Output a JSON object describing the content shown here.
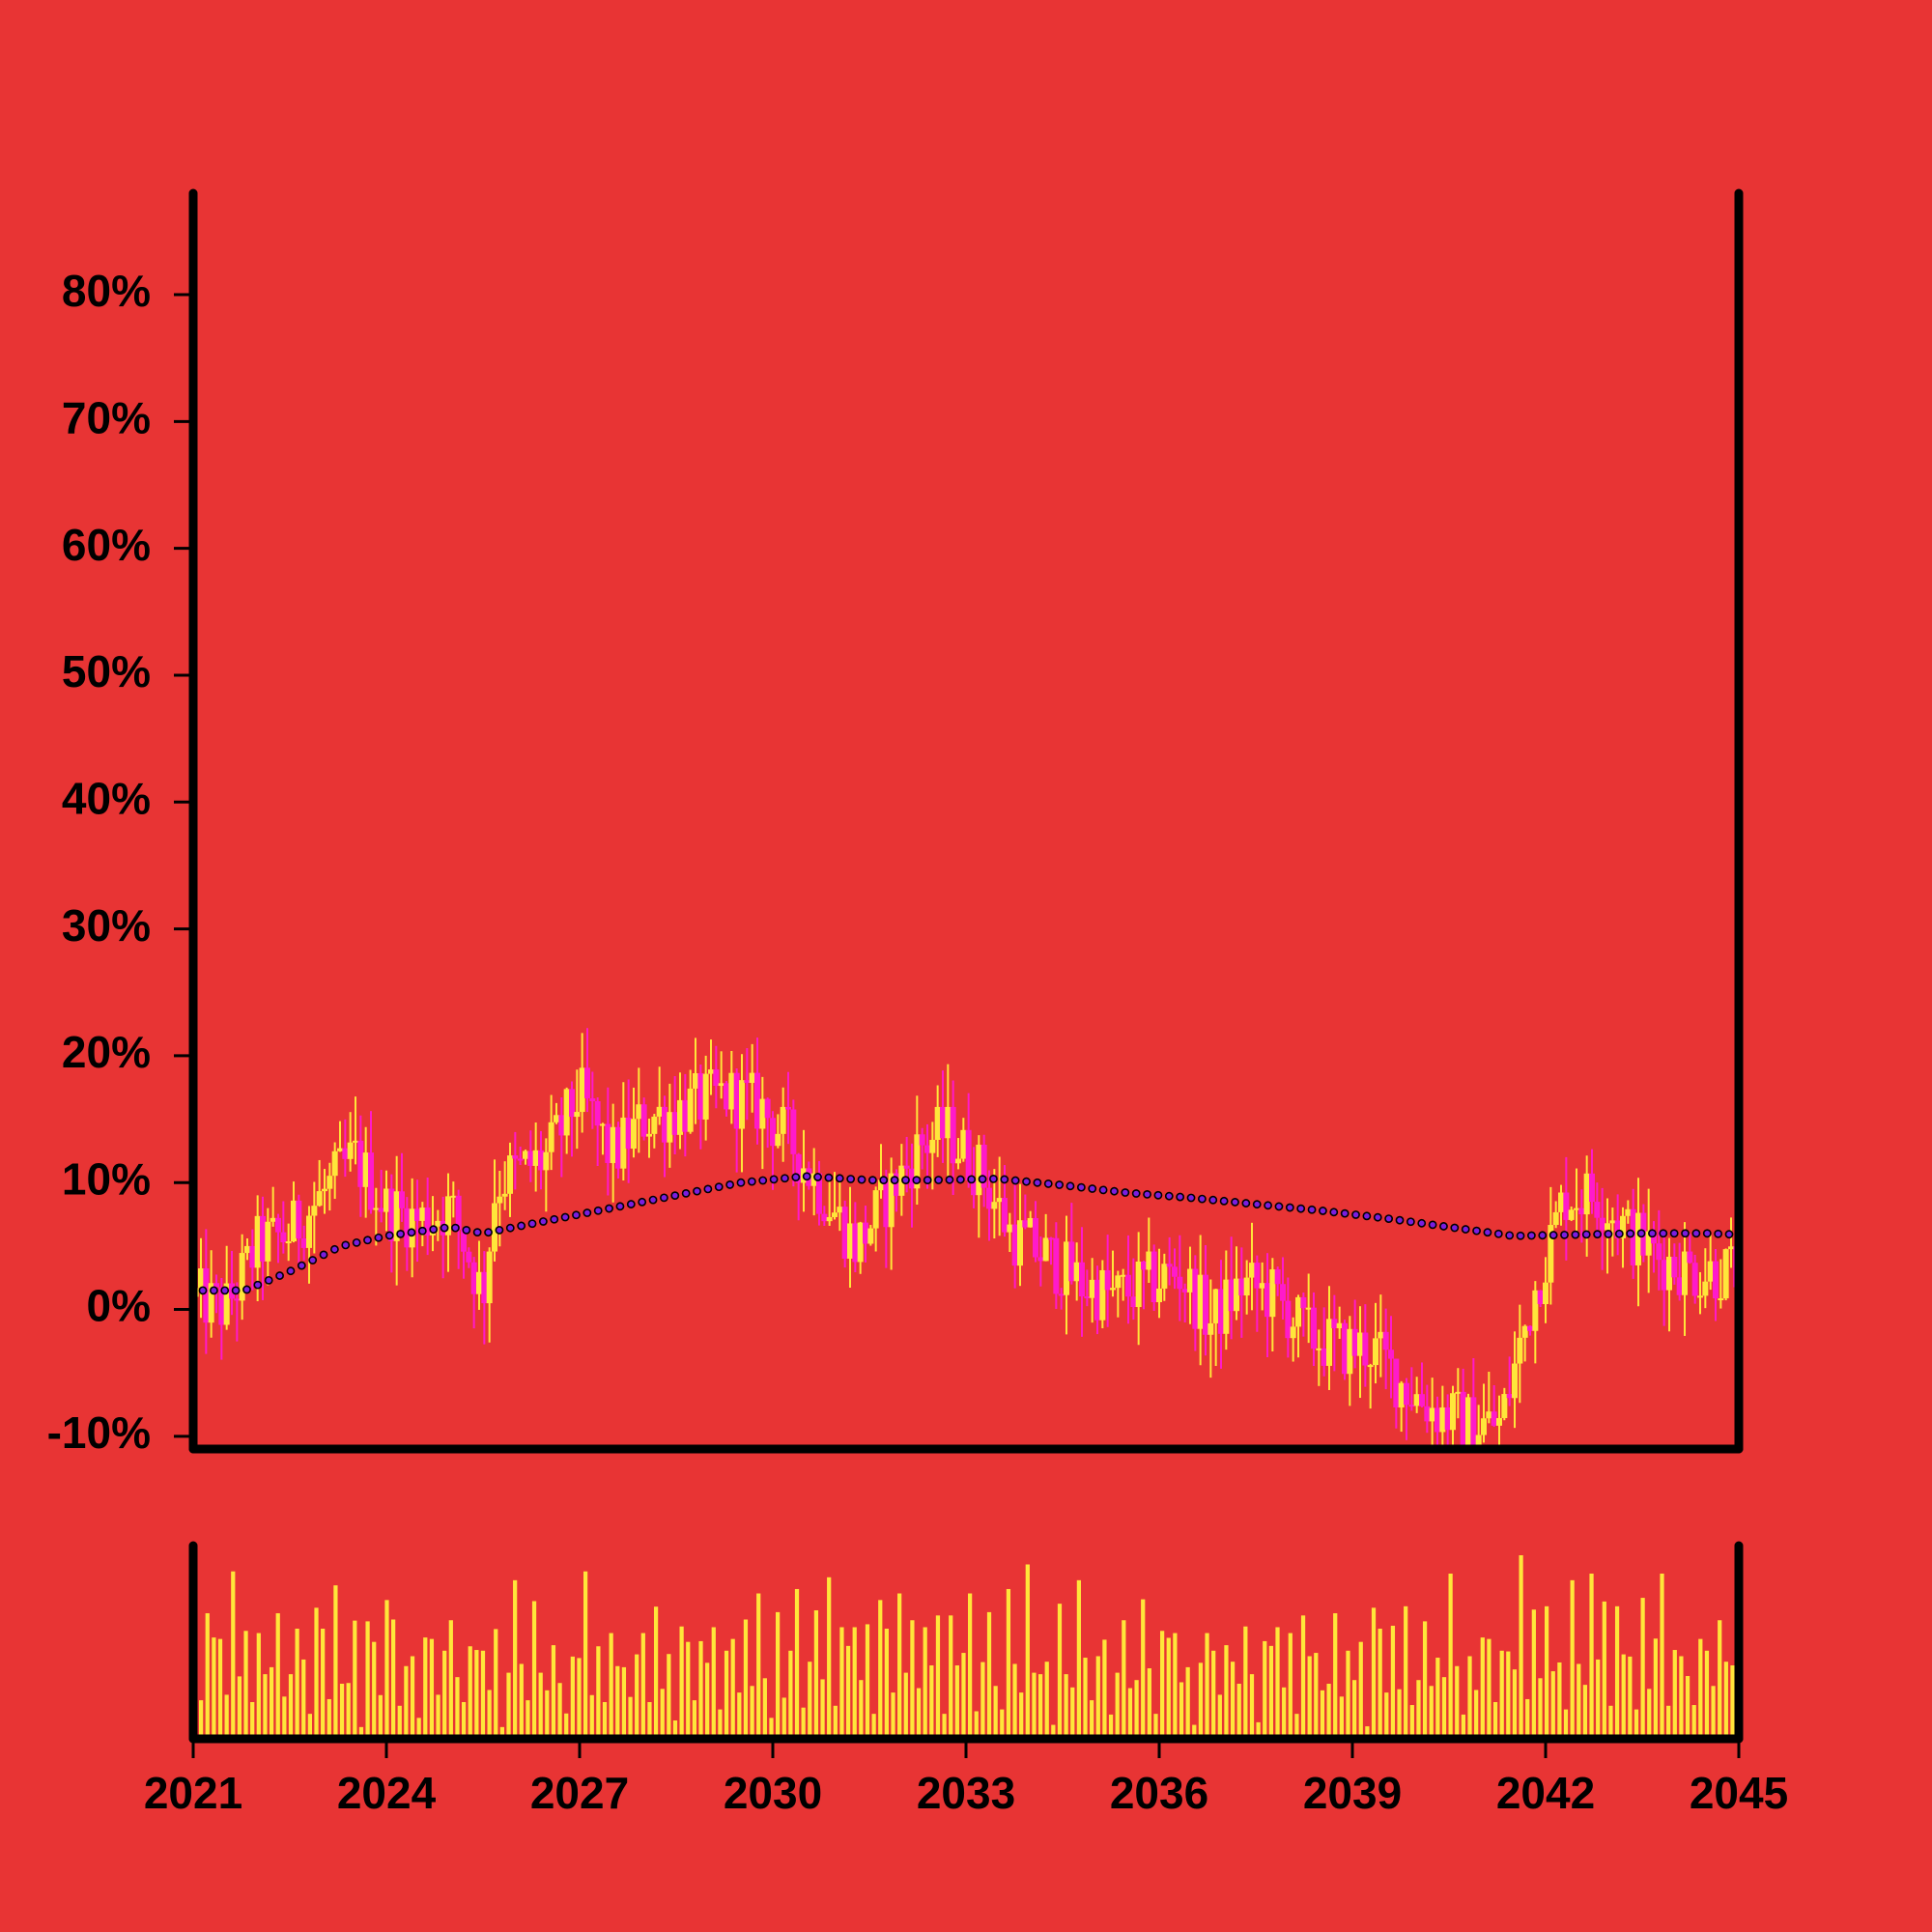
{
  "colors": {
    "background": "#e83434",
    "axis": "#000000",
    "candle_up": "#ffe63a",
    "candle_down": "#ff1acb",
    "volume": "#ffe63a",
    "ma_marker_fill": "#7a1ee0",
    "ma_marker_stroke": "#000000"
  },
  "chart_data": {
    "type": "candlestick",
    "title": "",
    "xlabel": "",
    "ylabel": "",
    "x_range": [
      "2021-01",
      "2045-01"
    ],
    "y_range": [
      -11,
      88
    ],
    "y_ticks": [
      {
        "value": 80,
        "label": "80%"
      },
      {
        "value": 70,
        "label": "70%"
      },
      {
        "value": 60,
        "label": "60%"
      },
      {
        "value": 50,
        "label": "50%"
      },
      {
        "value": 40,
        "label": "40%"
      },
      {
        "value": 30,
        "label": "30%"
      },
      {
        "value": 20,
        "label": "20%"
      },
      {
        "value": 10,
        "label": "10%"
      },
      {
        "value": 0,
        "label": "0%"
      },
      {
        "value": -10,
        "label": "-10%"
      }
    ],
    "x_ticks": [
      {
        "value": 2021,
        "label": "2021"
      },
      {
        "value": 2024,
        "label": "2024"
      },
      {
        "value": 2027,
        "label": "2027"
      },
      {
        "value": 2030,
        "label": "2030"
      },
      {
        "value": 2033,
        "label": "2033"
      },
      {
        "value": 2036,
        "label": "2036"
      },
      {
        "value": 2039,
        "label": "2039"
      },
      {
        "value": 2042,
        "label": "2042"
      },
      {
        "value": 2045,
        "label": "2045"
      }
    ],
    "grid": false,
    "legend": "none",
    "price_anchors": [
      [
        2021.0,
        1
      ],
      [
        2021.5,
        0
      ],
      [
        2022.0,
        5
      ],
      [
        2022.5,
        6
      ],
      [
        2023.0,
        9
      ],
      [
        2023.5,
        12
      ],
      [
        2024.0,
        8
      ],
      [
        2024.5,
        7
      ],
      [
        2025.0,
        8
      ],
      [
        2025.3,
        4
      ],
      [
        2025.5,
        1
      ],
      [
        2025.7,
        10
      ],
      [
        2026.5,
        12
      ],
      [
        2027.0,
        17
      ],
      [
        2027.5,
        12
      ],
      [
        2028.0,
        15
      ],
      [
        2028.7,
        16
      ],
      [
        2029.3,
        17
      ],
      [
        2029.8,
        16
      ],
      [
        2030.3,
        13
      ],
      [
        2030.8,
        9
      ],
      [
        2031.3,
        5
      ],
      [
        2031.8,
        9
      ],
      [
        2032.3,
        13
      ],
      [
        2032.7,
        14
      ],
      [
        2033.2,
        11
      ],
      [
        2033.7,
        6
      ],
      [
        2034.3,
        4
      ],
      [
        2034.8,
        2
      ],
      [
        2035.3,
        1
      ],
      [
        2035.8,
        2
      ],
      [
        2036.3,
        3
      ],
      [
        2036.8,
        -1
      ],
      [
        2037.3,
        2
      ],
      [
        2037.8,
        1
      ],
      [
        2038.3,
        -2
      ],
      [
        2038.8,
        -3
      ],
      [
        2039.3,
        -3
      ],
      [
        2039.8,
        -6
      ],
      [
        2040.3,
        -8
      ],
      [
        2040.8,
        -9
      ],
      [
        2041.3,
        -9
      ],
      [
        2041.8,
        1
      ],
      [
        2042.3,
        9
      ],
      [
        2042.8,
        9
      ],
      [
        2043.3,
        6
      ],
      [
        2043.8,
        4
      ],
      [
        2044.3,
        3
      ],
      [
        2045.0,
        3
      ]
    ],
    "moving_average": [
      [
        2021.0,
        1.5
      ],
      [
        2021.8,
        1.5
      ],
      [
        2022.5,
        3.0
      ],
      [
        2023.3,
        5.0
      ],
      [
        2024.0,
        5.8
      ],
      [
        2025.0,
        6.5
      ],
      [
        2025.5,
        6.0
      ],
      [
        2026.5,
        7.0
      ],
      [
        2027.5,
        8.0
      ],
      [
        2028.5,
        9.0
      ],
      [
        2029.5,
        10.0
      ],
      [
        2030.5,
        10.5
      ],
      [
        2031.5,
        10.2
      ],
      [
        2032.5,
        10.2
      ],
      [
        2033.5,
        10.3
      ],
      [
        2034.5,
        9.8
      ],
      [
        2035.5,
        9.2
      ],
      [
        2036.5,
        8.8
      ],
      [
        2037.5,
        8.3
      ],
      [
        2038.5,
        7.8
      ],
      [
        2039.5,
        7.2
      ],
      [
        2040.5,
        6.5
      ],
      [
        2041.5,
        5.8
      ],
      [
        2042.5,
        5.9
      ],
      [
        2043.5,
        6.0
      ],
      [
        2044.5,
        6.0
      ],
      [
        2045.0,
        5.9
      ]
    ],
    "volume_levels": [
      0.35,
      0.9,
      0.6,
      0.85,
      0.3,
      0.95,
      0.5,
      0.7,
      0.2,
      0.8,
      0.4,
      0.65,
      0.9,
      0.25,
      0.55,
      0.75,
      0.45,
      0.2,
      0.85,
      0.6,
      0.3,
      0.95,
      0.5,
      0.4,
      0.7,
      0.1,
      0.8,
      0.55,
      0.35,
      0.9,
      0.65,
      0.25,
      0.45,
      0.75,
      0.15,
      0.6,
      0.85,
      0.3,
      0.5,
      0.95,
      0.4,
      0.2,
      0.7,
      0.55,
      0.8,
      0.35,
      0.65,
      0.1,
      0.45,
      0.9,
      0.6,
      0.25,
      0.75,
      0.5,
      0.3,
      0.85,
      0.4,
      0.15,
      0.7,
      0.55,
      0.95,
      0.35,
      0.6,
      0.2,
      0.8,
      0.45,
      0.65,
      0.3,
      0.5,
      0.9,
      0.25,
      0.75,
      0.4,
      0.55,
      0.1,
      0.85,
      0.6,
      0.35,
      0.7,
      0.45,
      0.95,
      0.2,
      0.5,
      0.8,
      0.3,
      0.65,
      0.4,
      0.9,
      0.55,
      0.15,
      0.75,
      0.35,
      0.6,
      0.85,
      0.25,
      0.5,
      0.7,
      0.45,
      1.0,
      0.3,
      0.8,
      0.55,
      0.95,
      0.4,
      0.65,
      0.2,
      0.9,
      0.6
    ]
  }
}
